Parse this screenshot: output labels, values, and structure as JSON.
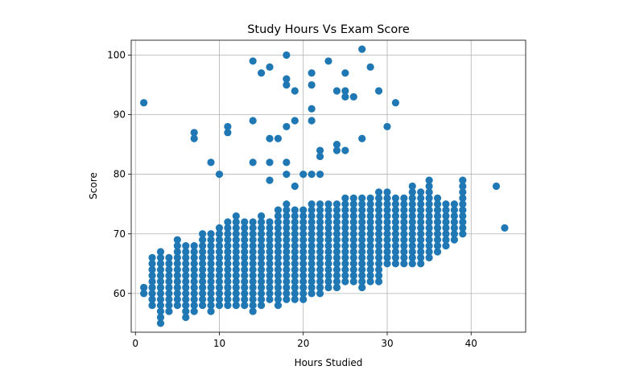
{
  "chart_data": {
    "type": "scatter",
    "title": "Study Hours Vs Exam Score",
    "xlabel": "Hours Studied",
    "ylabel": "Score",
    "xlim": [
      -0.5,
      46.5
    ],
    "ylim": [
      53.5,
      102.5
    ],
    "xticks": [
      0,
      10,
      20,
      30,
      40
    ],
    "yticks": [
      60,
      70,
      80,
      90,
      100
    ],
    "grid": true,
    "marker_color": "#1f77b4",
    "outliers": [
      [
        1,
        92
      ],
      [
        7,
        87
      ],
      [
        7,
        86
      ],
      [
        9,
        82
      ],
      [
        10,
        80
      ],
      [
        11,
        88
      ],
      [
        11,
        87
      ],
      [
        14,
        99
      ],
      [
        14,
        89
      ],
      [
        14,
        82
      ],
      [
        15,
        97
      ],
      [
        16,
        98
      ],
      [
        16,
        86
      ],
      [
        16,
        82
      ],
      [
        16,
        79
      ],
      [
        17,
        86
      ],
      [
        18,
        100
      ],
      [
        18,
        96
      ],
      [
        18,
        95
      ],
      [
        18,
        88
      ],
      [
        18,
        82
      ],
      [
        18,
        80
      ],
      [
        19,
        94
      ],
      [
        19,
        89
      ],
      [
        19,
        78
      ],
      [
        20,
        80
      ],
      [
        21,
        97
      ],
      [
        21,
        95
      ],
      [
        21,
        91
      ],
      [
        21,
        89
      ],
      [
        21,
        80
      ],
      [
        22,
        84
      ],
      [
        22,
        83
      ],
      [
        22,
        80
      ],
      [
        23,
        99
      ],
      [
        24,
        94
      ],
      [
        24,
        85
      ],
      [
        24,
        84
      ],
      [
        25,
        97
      ],
      [
        25,
        94
      ],
      [
        25,
        93
      ],
      [
        25,
        84
      ],
      [
        26,
        93
      ],
      [
        27,
        101
      ],
      [
        27,
        86
      ],
      [
        28,
        98
      ],
      [
        29,
        94
      ],
      [
        30,
        88
      ],
      [
        31,
        92
      ],
      [
        43,
        78
      ],
      [
        44,
        71
      ]
    ],
    "cluster": [
      {
        "x": 1,
        "ymin": 60,
        "ymax": 61
      },
      {
        "x": 2,
        "ymin": 58,
        "ymax": 66
      },
      {
        "x": 3,
        "ymin": 55,
        "ymax": 67
      },
      {
        "x": 4,
        "ymin": 57,
        "ymax": 66
      },
      {
        "x": 5,
        "ymin": 58,
        "ymax": 69
      },
      {
        "x": 6,
        "ymin": 56,
        "ymax": 68
      },
      {
        "x": 7,
        "ymin": 57,
        "ymax": 68
      },
      {
        "x": 8,
        "ymin": 58,
        "ymax": 70
      },
      {
        "x": 9,
        "ymin": 57,
        "ymax": 70
      },
      {
        "x": 10,
        "ymin": 58,
        "ymax": 71
      },
      {
        "x": 11,
        "ymin": 58,
        "ymax": 72
      },
      {
        "x": 12,
        "ymin": 58,
        "ymax": 73
      },
      {
        "x": 13,
        "ymin": 58,
        "ymax": 72
      },
      {
        "x": 14,
        "ymin": 57,
        "ymax": 72
      },
      {
        "x": 15,
        "ymin": 58,
        "ymax": 73
      },
      {
        "x": 16,
        "ymin": 59,
        "ymax": 72
      },
      {
        "x": 17,
        "ymin": 58,
        "ymax": 74
      },
      {
        "x": 18,
        "ymin": 59,
        "ymax": 75
      },
      {
        "x": 19,
        "ymin": 59,
        "ymax": 74
      },
      {
        "x": 20,
        "ymin": 59,
        "ymax": 74
      },
      {
        "x": 21,
        "ymin": 60,
        "ymax": 75
      },
      {
        "x": 22,
        "ymin": 60,
        "ymax": 75
      },
      {
        "x": 23,
        "ymin": 61,
        "ymax": 75
      },
      {
        "x": 24,
        "ymin": 61,
        "ymax": 75
      },
      {
        "x": 25,
        "ymin": 62,
        "ymax": 76
      },
      {
        "x": 26,
        "ymin": 62,
        "ymax": 76
      },
      {
        "x": 27,
        "ymin": 61,
        "ymax": 76
      },
      {
        "x": 28,
        "ymin": 62,
        "ymax": 76
      },
      {
        "x": 29,
        "ymin": 62,
        "ymax": 77
      },
      {
        "x": 30,
        "ymin": 65,
        "ymax": 77
      },
      {
        "x": 31,
        "ymin": 65,
        "ymax": 76
      },
      {
        "x": 32,
        "ymin": 65,
        "ymax": 76
      },
      {
        "x": 33,
        "ymin": 65,
        "ymax": 78
      },
      {
        "x": 34,
        "ymin": 65,
        "ymax": 77
      },
      {
        "x": 35,
        "ymin": 66,
        "ymax": 79
      },
      {
        "x": 36,
        "ymin": 67,
        "ymax": 76
      },
      {
        "x": 37,
        "ymin": 68,
        "ymax": 75
      },
      {
        "x": 38,
        "ymin": 69,
        "ymax": 75
      },
      {
        "x": 39,
        "ymin": 70,
        "ymax": 79
      }
    ]
  }
}
